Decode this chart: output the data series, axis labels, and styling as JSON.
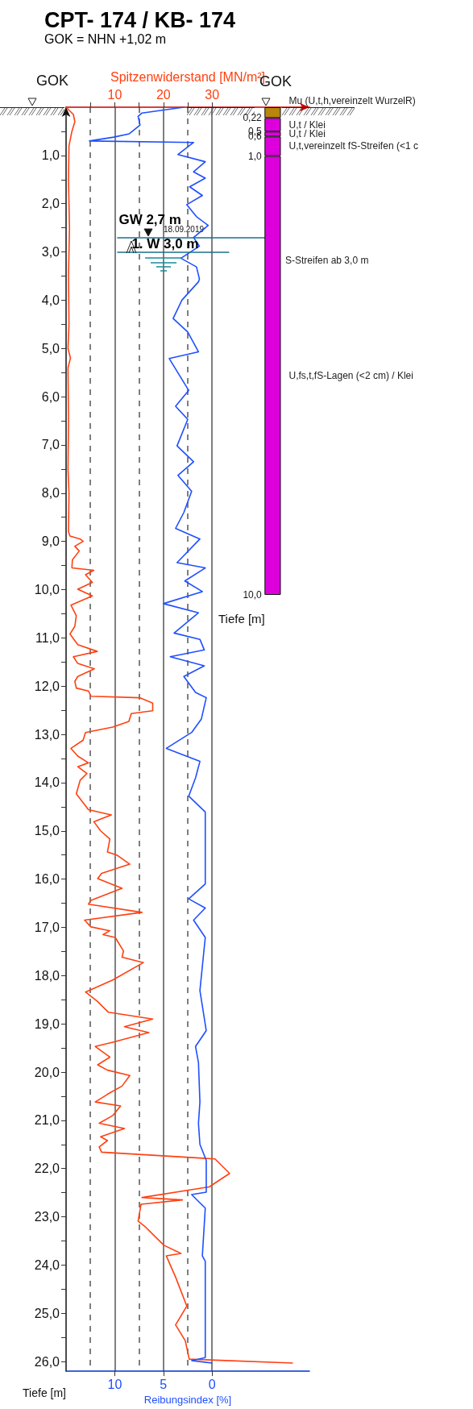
{
  "chart_data": [
    {
      "type": "line",
      "title": "CPT- 174 / KB- 174",
      "subtitle": "GOK = NHN +1,02 m",
      "x2label": "Spitzenwiderstand [MN/m²]",
      "xlabel": "Reibungsindex [%]",
      "ylabel": "Tiefe [m]",
      "x2lim": [
        0,
        50
      ],
      "x2ticks": [
        {
          "value": 5,
          "label": null
        },
        10,
        {
          "value": 15,
          "label": null
        },
        20,
        {
          "value": 25,
          "label": null
        },
        30
      ],
      "xlim": [
        15,
        -10
      ],
      "xticks": [
        10,
        5,
        0
      ],
      "ylim": [
        26.2,
        0
      ],
      "yticks": [
        {
          "value": 0.5,
          "label": null
        },
        {
          "value": 1,
          "label": "1,0"
        },
        {
          "value": 1.5,
          "label": null
        },
        {
          "value": 2,
          "label": "2,0"
        },
        {
          "value": 2.5,
          "label": null
        },
        {
          "value": 3,
          "label": "3,0"
        },
        {
          "value": 3.5,
          "label": null
        },
        {
          "value": 4,
          "label": "4,0"
        },
        {
          "value": 4.5,
          "label": null
        },
        {
          "value": 5,
          "label": "5,0"
        },
        {
          "value": 5.5,
          "label": null
        },
        {
          "value": 6,
          "label": "6,0"
        },
        {
          "value": 6.5,
          "label": null
        },
        {
          "value": 7,
          "label": "7,0"
        },
        {
          "value": 7.5,
          "label": null
        },
        {
          "value": 8,
          "label": "8,0"
        },
        {
          "value": 8.5,
          "label": null
        },
        {
          "value": 9,
          "label": "9,0"
        },
        {
          "value": 9.5,
          "label": null
        },
        {
          "value": 10,
          "label": "10,0"
        },
        {
          "value": 10.5,
          "label": null
        },
        {
          "value": 11,
          "label": "11,0"
        },
        {
          "value": 11.5,
          "label": null
        },
        {
          "value": 12,
          "label": "12,0"
        },
        {
          "value": 12.5,
          "label": null
        },
        {
          "value": 13,
          "label": "13,0"
        },
        {
          "value": 13.5,
          "label": null
        },
        {
          "value": 14,
          "label": "14,0"
        },
        {
          "value": 14.5,
          "label": null
        },
        {
          "value": 15,
          "label": "15,0"
        },
        {
          "value": 15.5,
          "label": null
        },
        {
          "value": 16,
          "label": "16,0"
        },
        {
          "value": 16.5,
          "label": null
        },
        {
          "value": 17,
          "label": "17,0"
        },
        {
          "value": 17.5,
          "label": null
        },
        {
          "value": 18,
          "label": "18,0"
        },
        {
          "value": 18.5,
          "label": null
        },
        {
          "value": 19,
          "label": "19,0"
        },
        {
          "value": 19.5,
          "label": null
        },
        {
          "value": 20,
          "label": "20,0"
        },
        {
          "value": 20.5,
          "label": null
        },
        {
          "value": 21,
          "label": "21,0"
        },
        {
          "value": 21.5,
          "label": null
        },
        {
          "value": 22,
          "label": "22,0"
        },
        {
          "value": 22.5,
          "label": null
        },
        {
          "value": 23,
          "label": "23,0"
        },
        {
          "value": 23.5,
          "label": null
        },
        {
          "value": 24,
          "label": "24,0"
        },
        {
          "value": 24.5,
          "label": null
        },
        {
          "value": 25,
          "label": "25,0"
        },
        {
          "value": 25.5,
          "label": null
        },
        {
          "value": 26,
          "label": "26,0"
        }
      ],
      "grid": "x",
      "legend": false,
      "series": [
        {
          "axis": "x2",
          "color": "#ff4010",
          "x": [
            0,
            1.5,
            1.8,
            1.2,
            0.6,
            0.5,
            0.7,
            0.5,
            0.6,
            0.4,
            0.9,
            0.4,
            0.5,
            0.4,
            0.6,
            0.5,
            0.8,
            2.9,
            3.5,
            1.8,
            2.7,
            1.3,
            1.2,
            5.7,
            4.0,
            5.4,
            2.4,
            5.4,
            1.0,
            2.1,
            1.8,
            0.8,
            2.4,
            6.4,
            1.5,
            2.4,
            5.8,
            2.4,
            1.8,
            2.1,
            4.6,
            5.1,
            15.1,
            17.8,
            17.8,
            13.4,
            12.9,
            9.6,
            4.0,
            3.5,
            1.0,
            2.4,
            4.6,
            2.4,
            4.3,
            2.9,
            2.1,
            4.6,
            9.3,
            5.7,
            7.1,
            9.0,
            8.5,
            10.4,
            13.1,
            7.3,
            6.5,
            11.5,
            5.1,
            4.6,
            15.6,
            3.8,
            5.1,
            9.0,
            7.6,
            10.1,
            11.8,
            11.5,
            15.9,
            9.6,
            4.0,
            6.5,
            8.7,
            17.8,
            12.0,
            17.0,
            9.6,
            6.0,
            9.0,
            6.5,
            8.5,
            13.1,
            11.5,
            8.5,
            6.0,
            11.2,
            9.6,
            6.8,
            12.0,
            7.1,
            8.5,
            6.8,
            7.3,
            30.6,
            33.6,
            29.4,
            15.6,
            23.9,
            15.4,
            14.8,
            16.2,
            20.1,
            23.6,
            20.6,
            22.5,
            24.8,
            22.5,
            24.5,
            25.3,
            46.6
          ],
          "values": [
            0,
            0.15,
            0.3,
            0.5,
            0.8,
            1.5,
            2.5,
            3.5,
            4.5,
            5.0,
            5.2,
            5.4,
            6.5,
            7.5,
            8.0,
            8.8,
            8.89,
            8.95,
            9.0,
            9.1,
            9.2,
            9.38,
            9.55,
            9.6,
            9.69,
            9.85,
            9.99,
            10.13,
            10.32,
            10.54,
            10.76,
            10.92,
            11.14,
            11.28,
            11.39,
            11.53,
            11.64,
            11.8,
            11.9,
            12.04,
            12.1,
            12.21,
            12.24,
            12.35,
            12.51,
            12.57,
            12.73,
            12.85,
            12.96,
            13.12,
            13.29,
            13.45,
            13.59,
            13.67,
            13.81,
            13.95,
            14.23,
            14.56,
            14.67,
            14.81,
            15.0,
            15.17,
            15.44,
            15.5,
            15.69,
            15.88,
            15.99,
            16.19,
            16.44,
            16.52,
            16.69,
            16.85,
            16.99,
            17.07,
            17.15,
            17.21,
            17.49,
            17.62,
            17.73,
            18.09,
            18.34,
            18.54,
            18.76,
            18.9,
            19.06,
            19.18,
            19.38,
            19.47,
            19.69,
            19.85,
            19.96,
            20.07,
            20.29,
            20.46,
            20.62,
            20.7,
            20.9,
            21.06,
            21.17,
            21.34,
            21.42,
            21.55,
            21.66,
            21.8,
            22.1,
            22.38,
            22.6,
            22.65,
            22.74,
            23.09,
            23.2,
            23.59,
            23.76,
            23.81,
            24.25,
            24.85,
            25.24,
            25.57,
            25.95,
            26.03
          ]
        },
        {
          "color": "#1f4fff",
          "x": [
            2.9,
            7.2,
            7.6,
            7.4,
            8.5,
            10.1,
            12.6,
            1.9,
            3.5,
            0.7,
            1.9,
            0.7,
            2.3,
            1.0,
            2.6,
            1.6,
            0.4,
            1.9,
            1.3,
            3.2,
            1.6,
            1.3,
            1.4,
            3.1,
            4.0,
            2.5,
            1.4,
            4.4,
            2.4,
            3.75,
            2.5,
            3.6,
            1.9,
            3.5,
            2.1,
            2.9,
            3.75,
            1.25,
            3.6,
            0.7,
            2.8,
            1.0,
            5.0,
            1.4,
            3.9,
            1.25,
            0.8,
            4.3,
            0.8,
            2.9,
            1.7,
            0.6,
            1.1,
            2.1,
            4.7,
            1.25,
            1.7,
            2.4,
            0.7,
            0.7,
            0.7,
            2.4,
            0.7,
            1.9,
            0.7,
            1.25,
            0.6,
            1.7,
            1.4,
            1.25,
            1.4,
            1.25,
            0.6,
            0.6,
            2.1,
            0.7,
            1.0,
            0.7,
            0.7,
            2.1,
            0.0
          ],
          "values": [
            0,
            0.12,
            0.19,
            0.37,
            0.55,
            0.62,
            0.7,
            0.73,
            0.98,
            1.13,
            1.34,
            1.47,
            1.65,
            1.83,
            2.02,
            2.27,
            2.45,
            2.7,
            2.88,
            3.13,
            3.31,
            3.56,
            3.62,
            4.0,
            4.38,
            4.66,
            5.07,
            5.21,
            5.87,
            6.2,
            6.47,
            7.02,
            7.35,
            7.63,
            7.96,
            8.4,
            8.73,
            8.95,
            9.44,
            9.55,
            9.82,
            10.04,
            10.29,
            10.48,
            10.9,
            11.03,
            11.25,
            11.39,
            11.58,
            11.8,
            12.13,
            12.24,
            12.68,
            12.96,
            13.29,
            13.56,
            13.9,
            14.28,
            14.61,
            15.55,
            16.1,
            16.41,
            16.6,
            16.85,
            17.21,
            18.31,
            19.14,
            19.47,
            19.8,
            20.62,
            21.06,
            21.5,
            21.83,
            22.49,
            22.54,
            22.82,
            23.81,
            23.92,
            25.92,
            25.98,
            26.03
          ]
        }
      ],
      "ref_lines": [
        {
          "axis": "y",
          "value": 2.7,
          "label": "GW 2,7 m"
        },
        {
          "axis": "y",
          "value": 3.0,
          "label": "1. W 3,0 m"
        }
      ],
      "annotations": [
        "GOK",
        "18.09.2019"
      ]
    },
    {
      "type": "bar",
      "stacked": true,
      "categories": [
        null
      ],
      "ylabel": "Tiefe [m]",
      "ylim": [
        10,
        0
      ],
      "yticks": [
        {
          "value": 0.22,
          "label": "0,22"
        },
        {
          "value": 0.5,
          "label": "0,5"
        },
        {
          "value": 0.6,
          "label": "0,6"
        },
        {
          "value": 1,
          "label": "1,0"
        },
        {
          "value": 10,
          "label": "10,0"
        }
      ],
      "tick_labels": "y",
      "legend": false,
      "series": [
        {
          "name": "Mu (U,t,h,vereinzelt WurzelR)",
          "color": "#b8860b",
          "values": [
            0.22
          ]
        },
        {
          "name": "U,t / Klei",
          "color": "#dd00dd",
          "values": [
            0.28
          ]
        },
        {
          "name": "U,t / Klei",
          "color": "#dd00dd",
          "values": [
            0.1
          ]
        },
        {
          "name": "U,t,vereinzelt fS-Streifen (<1 c",
          "color": "#dd00dd",
          "values": [
            0.4
          ]
        },
        {
          "name": "U,fs,t,fS-Lagen (<2 cm) / Klei",
          "color": "#dd00dd",
          "values": [
            9.0
          ]
        }
      ],
      "annotations": [
        "GOK",
        "S-Streifen ab 3,0 m"
      ]
    }
  ]
}
